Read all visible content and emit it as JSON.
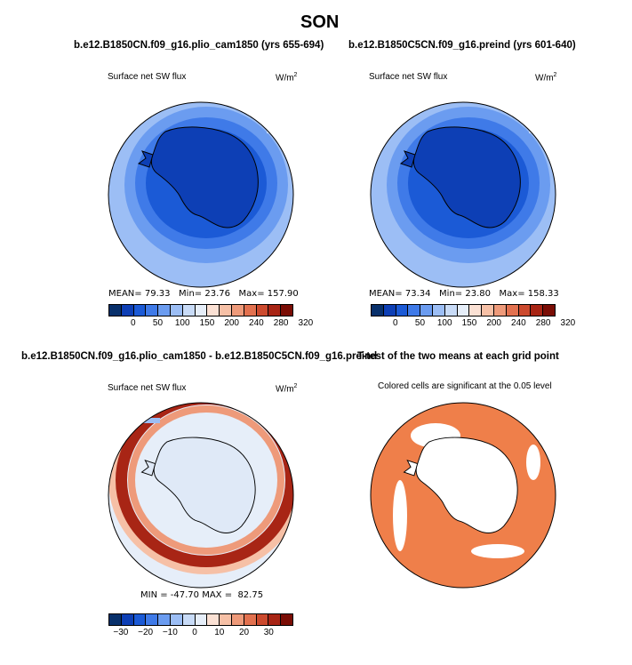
{
  "page": {
    "title": "SON"
  },
  "panels": [
    {
      "case_title": "b.e12.B1850CN.f09_g16.plio_cam1850 (yrs 655-694)",
      "var_label": "Surface net SW flux",
      "units": "W/m",
      "units_sup": "2",
      "stats": {
        "mean_label": "MEAN=",
        "mean": "79.33",
        "min_label": "Min=",
        "min": "23.76",
        "max_label": "Max=",
        "max": "157.90"
      }
    },
    {
      "case_title": "b.e12.B1850C5CN.f09_g16.preind (yrs 601-640)",
      "var_label": "Surface net SW flux",
      "units": "W/m",
      "units_sup": "2",
      "stats": {
        "mean_label": "MEAN=",
        "mean": "73.34",
        "min_label": "Min=",
        "min": "23.80",
        "max_label": "Max=",
        "max": "158.33"
      }
    },
    {
      "case_title": "b.e12.B1850CN.f09_g16.plio_cam1850 - b.e12.B1850C5CN.f09_g16.preind",
      "var_label": "Surface net SW flux",
      "units": "W/m",
      "units_sup": "2",
      "stats_line": "MIN = -47.70 MAX =  82.75"
    },
    {
      "case_title": "T-test of the two means at each grid point",
      "subtitle": "Colored cells are significant at the 0.05 level"
    }
  ],
  "colorbars": {
    "absolute": {
      "colors": [
        "#08306b",
        "#0d3fb5",
        "#1b5ad6",
        "#3f7ae8",
        "#6b9cf0",
        "#9cbef5",
        "#c8dbf7",
        "#e6eef9",
        "#fbe1d4",
        "#f6c0a6",
        "#ee9a7a",
        "#e2714f",
        "#cc4a2e",
        "#a82515",
        "#7a0d05"
      ],
      "ticks": [
        "0",
        "50",
        "100",
        "150",
        "200",
        "240",
        "280",
        "320"
      ]
    },
    "difference": {
      "colors": [
        "#08306b",
        "#0d3fb5",
        "#1b5ad6",
        "#3f7ae8",
        "#6b9cf0",
        "#9cbef5",
        "#c8dbf7",
        "#e6eef9",
        "#fbe1d4",
        "#f6c0a6",
        "#ee9a7a",
        "#e2714f",
        "#cc4a2e",
        "#a82515",
        "#7a0d05"
      ],
      "ticks": [
        "−30",
        "−20",
        "−10",
        "0",
        "10",
        "20",
        "30"
      ]
    }
  },
  "chart_data": [
    {
      "type": "heatmap",
      "projection": "south-polar-stereographic",
      "title": "b.e12.B1850CN.f09_g16.plio_cam1850 (yrs 655-694)",
      "variable": "Surface net SW flux",
      "units": "W/m2",
      "season": "SON",
      "mean": 79.33,
      "min": 23.76,
      "max": 157.9,
      "colorbar_levels": [
        0,
        50,
        100,
        150,
        200,
        240,
        280,
        320
      ]
    },
    {
      "type": "heatmap",
      "projection": "south-polar-stereographic",
      "title": "b.e12.B1850C5CN.f09_g16.preind (yrs 601-640)",
      "variable": "Surface net SW flux",
      "units": "W/m2",
      "season": "SON",
      "mean": 73.34,
      "min": 23.8,
      "max": 158.33,
      "colorbar_levels": [
        0,
        50,
        100,
        150,
        200,
        240,
        280,
        320
      ]
    },
    {
      "type": "heatmap",
      "projection": "south-polar-stereographic",
      "title": "b.e12.B1850CN.f09_g16.plio_cam1850 - b.e12.B1850C5CN.f09_g16.preind",
      "variable": "Surface net SW flux",
      "units": "W/m2",
      "min": -47.7,
      "max": 82.75,
      "colorbar_levels": [
        -30,
        -20,
        -10,
        0,
        10,
        20,
        30
      ]
    },
    {
      "type": "heatmap",
      "projection": "south-polar-stereographic",
      "title": "T-test of the two means at each grid point",
      "subtitle": "Colored cells are significant at the 0.05 level",
      "significance_level": 0.05
    }
  ]
}
